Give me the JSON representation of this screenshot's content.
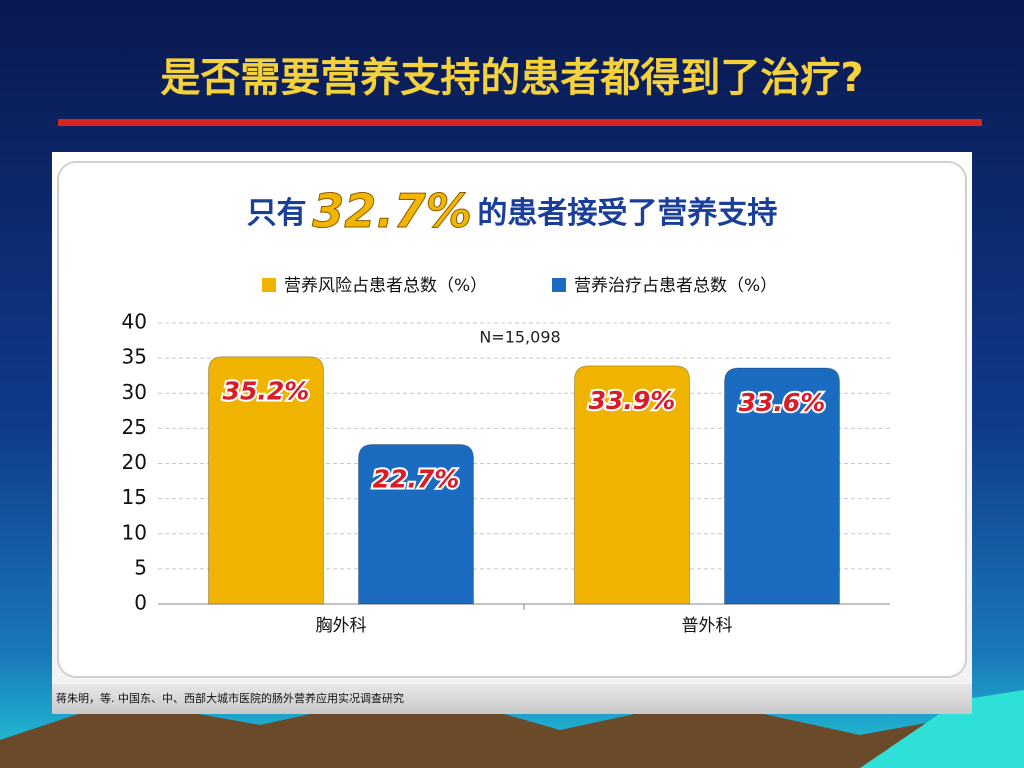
{
  "slide": {
    "title": "是否需要营养支持的患者都得到了治疗?",
    "footnote": "蒋朱明，等. 中国东、中、西部大城市医院的肠外营养应用实况调查研究"
  },
  "chart_data": {
    "type": "bar",
    "title": [
      "只有",
      "32.7%",
      "的患者接受了营养支持"
    ],
    "annotation": "N=15,098",
    "categories": [
      "胸外科",
      "普外科"
    ],
    "series": [
      {
        "name": "营养风险占患者总数（%）",
        "color": "#f0b400",
        "values": [
          35.2,
          33.9
        ],
        "value_labels": [
          "35.2%",
          "33.9%"
        ]
      },
      {
        "name": "营养治疗占患者总数（%）",
        "color": "#1b6cc0",
        "values": [
          22.7,
          33.6
        ],
        "value_labels": [
          "22.7%",
          "33.6%"
        ]
      }
    ],
    "ylim": [
      0,
      40
    ],
    "yticks": [
      0,
      5,
      10,
      15,
      20,
      25,
      30,
      35,
      40
    ],
    "grid": true,
    "legend": "top"
  }
}
